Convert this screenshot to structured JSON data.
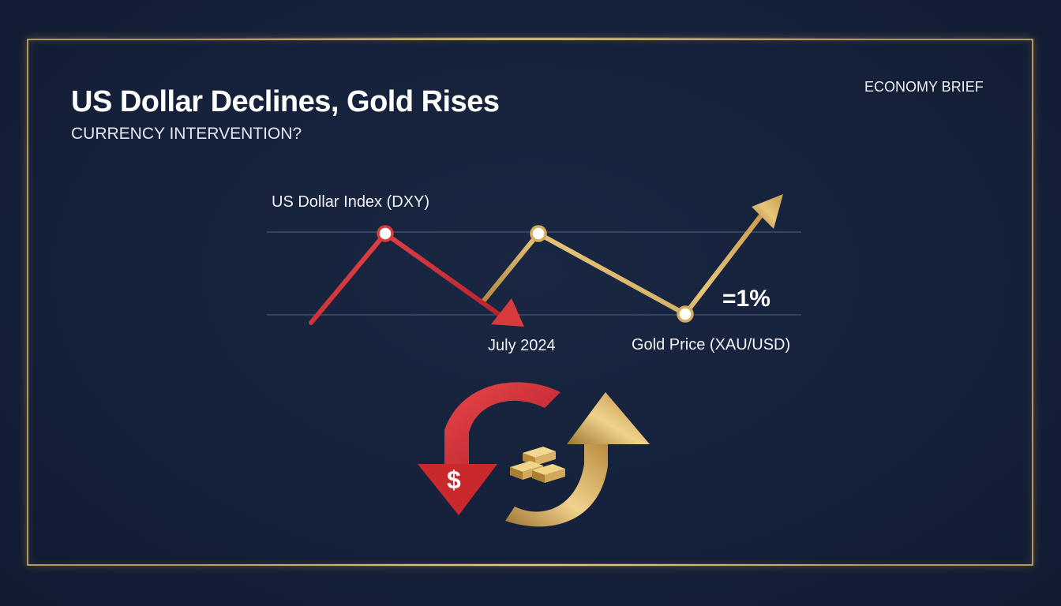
{
  "header": {
    "title": "US Dollar Declines, Gold Rises",
    "subtitle": "CURRENCY INTERVENTION?",
    "tag": "ECONOMY BRIEF"
  },
  "chart_data": {
    "type": "line",
    "grid": true,
    "series": [
      {
        "name": "US Dollar Index (DXY)",
        "color": "#d93a3d",
        "direction": "down"
      },
      {
        "name": "Gold Price (XAU/USD)",
        "color": "#d6ad5b",
        "direction": "up"
      }
    ],
    "annotations": {
      "date_label": "July 2024",
      "change_label": "=1%"
    }
  },
  "icons": {
    "dollar_symbol": "$",
    "down_arrow": "red-curved-down-arrow-icon",
    "up_arrow": "gold-curved-up-arrow-icon",
    "gold": "gold-bars-icon"
  },
  "colors": {
    "background": "#14213a",
    "frame": "#b8955a",
    "dollar_red": "#d93a3d",
    "gold": "#d6ad5b"
  }
}
